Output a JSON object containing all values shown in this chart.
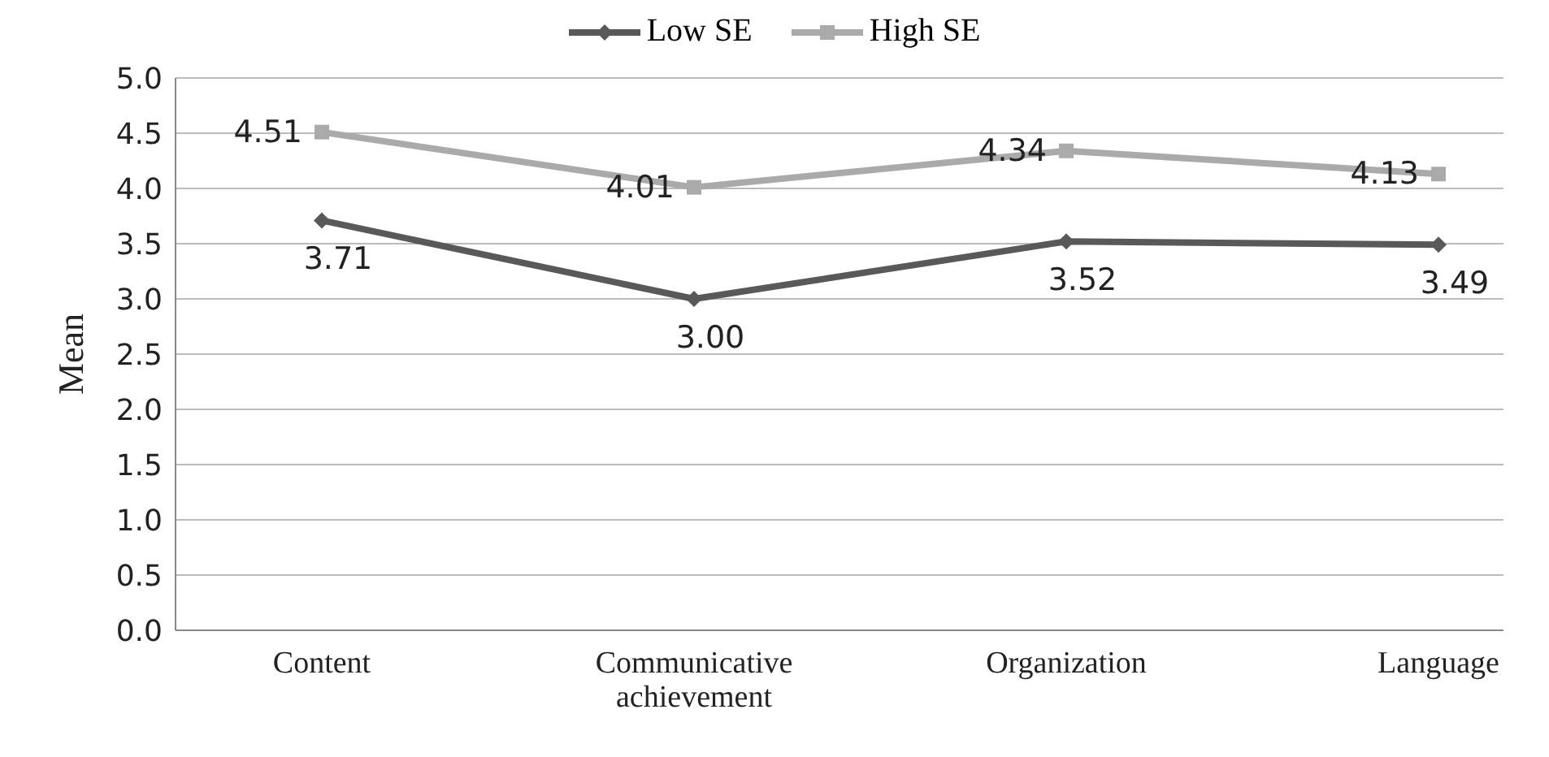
{
  "chart_data": {
    "type": "line",
    "ylabel": "Mean",
    "categories": [
      "Content",
      "Communicative achievement",
      "Organization",
      "Language"
    ],
    "series": [
      {
        "name": "Low SE",
        "color": "#595959",
        "marker": "diamond",
        "values": [
          3.71,
          3.0,
          3.52,
          3.49
        ],
        "value_labels": [
          "3.71",
          "3.00",
          "3.52",
          "3.49"
        ]
      },
      {
        "name": "High SE",
        "color": "#aaaaaa",
        "marker": "square",
        "values": [
          4.51,
          4.01,
          4.34,
          4.13
        ],
        "value_labels": [
          "4.51",
          "4.01",
          "4.34",
          "4.13"
        ]
      }
    ],
    "ylim": [
      0,
      5
    ],
    "yticks": [
      {
        "value": 0,
        "label": "0.0"
      },
      {
        "value": 0.5,
        "label": "0.5"
      },
      {
        "value": 1,
        "label": "1.0"
      },
      {
        "value": 1.5,
        "label": "1.5"
      },
      {
        "value": 2,
        "label": "2.0"
      },
      {
        "value": 2.5,
        "label": "2.5"
      },
      {
        "value": 3,
        "label": "3.0"
      },
      {
        "value": 3.5,
        "label": "3.5"
      },
      {
        "value": 4,
        "label": "4.0"
      },
      {
        "value": 4.5,
        "label": "4.5"
      },
      {
        "value": 5,
        "label": "5.0"
      }
    ],
    "grid": "y",
    "legend": "top",
    "line_style": "solid"
  }
}
